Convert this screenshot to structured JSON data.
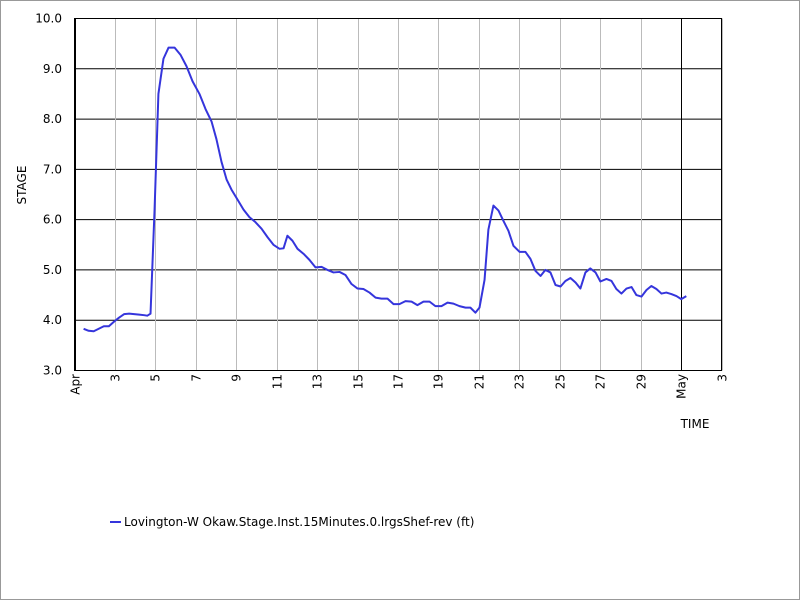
{
  "chart_data": {
    "type": "line",
    "y_label": "STAGE",
    "x_label": "TIME",
    "xlim": [
      1,
      33
    ],
    "xticks": [
      {
        "value": 1,
        "label": "Apr"
      },
      3,
      5,
      7,
      9,
      11,
      13,
      15,
      17,
      19,
      21,
      23,
      25,
      27,
      29,
      {
        "value": 31,
        "label": "May"
      },
      {
        "value": 33,
        "label": "3"
      }
    ],
    "ylim": [
      3,
      10
    ],
    "yticks": [
      {
        "value": 3,
        "label": "3.0"
      },
      {
        "value": 4,
        "label": "4.0"
      },
      {
        "value": 5,
        "label": "5.0"
      },
      {
        "value": 6,
        "label": "6.0"
      },
      {
        "value": 7,
        "label": "7.0"
      },
      {
        "value": 8,
        "label": "8.0"
      },
      {
        "value": 9,
        "label": "9.0"
      },
      {
        "value": 10,
        "label": "10.0"
      }
    ],
    "grid": true,
    "legend": "bottom",
    "series": [
      {
        "name": "Lovington-W Okaw.Stage.Inst.15Minutes.0.lrgsShef-rev (ft)",
        "color": "#3535dc",
        "x": [
          1.45,
          1.7,
          1.95,
          2.2,
          2.45,
          2.7,
          2.95,
          3.2,
          3.45,
          3.7,
          3.95,
          4.2,
          4.45,
          4.6,
          4.76,
          4.96,
          5.15,
          5.4,
          5.65,
          5.95,
          6.24,
          6.54,
          6.84,
          7.18,
          7.48,
          7.78,
          8.02,
          8.27,
          8.52,
          8.76,
          9.06,
          9.36,
          9.65,
          9.95,
          10.25,
          10.55,
          10.84,
          11.14,
          11.34,
          11.53,
          11.78,
          12.03,
          12.33,
          12.62,
          12.92,
          13.22,
          13.51,
          13.81,
          14.11,
          14.4,
          14.7,
          15.0,
          15.29,
          15.59,
          15.89,
          16.18,
          16.48,
          16.78,
          17.07,
          17.37,
          17.67,
          17.96,
          18.26,
          18.56,
          18.85,
          19.15,
          19.45,
          19.74,
          20.04,
          20.34,
          20.58,
          20.83,
          21.03,
          21.28,
          21.47,
          21.72,
          21.97,
          22.21,
          22.46,
          22.71,
          23.01,
          23.3,
          23.55,
          23.8,
          24.05,
          24.29,
          24.54,
          24.79,
          25.04,
          25.28,
          25.53,
          25.78,
          26.02,
          26.27,
          26.51,
          26.77,
          27.01,
          27.31,
          27.56,
          27.8,
          28.05,
          28.3,
          28.55,
          28.79,
          29.04,
          29.29,
          29.53,
          29.78,
          30.03,
          30.27,
          30.52,
          30.77,
          31.01,
          31.26
        ],
        "values": [
          3.83,
          3.79,
          3.78,
          3.83,
          3.88,
          3.88,
          3.97,
          4.05,
          4.12,
          4.13,
          4.12,
          4.11,
          4.1,
          4.09,
          4.13,
          6.2,
          8.5,
          9.2,
          9.42,
          9.42,
          9.28,
          9.05,
          8.75,
          8.5,
          8.2,
          7.95,
          7.6,
          7.15,
          6.8,
          6.6,
          6.4,
          6.2,
          6.05,
          5.95,
          5.82,
          5.65,
          5.5,
          5.42,
          5.43,
          5.68,
          5.58,
          5.42,
          5.32,
          5.2,
          5.05,
          5.06,
          5.0,
          4.95,
          4.96,
          4.9,
          4.72,
          4.63,
          4.62,
          4.55,
          4.45,
          4.43,
          4.43,
          4.32,
          4.32,
          4.38,
          4.37,
          4.3,
          4.37,
          4.37,
          4.28,
          4.28,
          4.35,
          4.33,
          4.28,
          4.25,
          4.25,
          4.15,
          4.25,
          4.8,
          5.8,
          6.28,
          6.18,
          5.98,
          5.78,
          5.48,
          5.36,
          5.36,
          5.22,
          4.98,
          4.88,
          5.0,
          4.95,
          4.7,
          4.67,
          4.78,
          4.84,
          4.75,
          4.63,
          4.95,
          5.03,
          4.95,
          4.77,
          4.82,
          4.78,
          4.62,
          4.53,
          4.63,
          4.66,
          4.5,
          4.47,
          4.6,
          4.68,
          4.62,
          4.53,
          4.55,
          4.52,
          4.48,
          4.42,
          4.48
        ]
      }
    ]
  }
}
